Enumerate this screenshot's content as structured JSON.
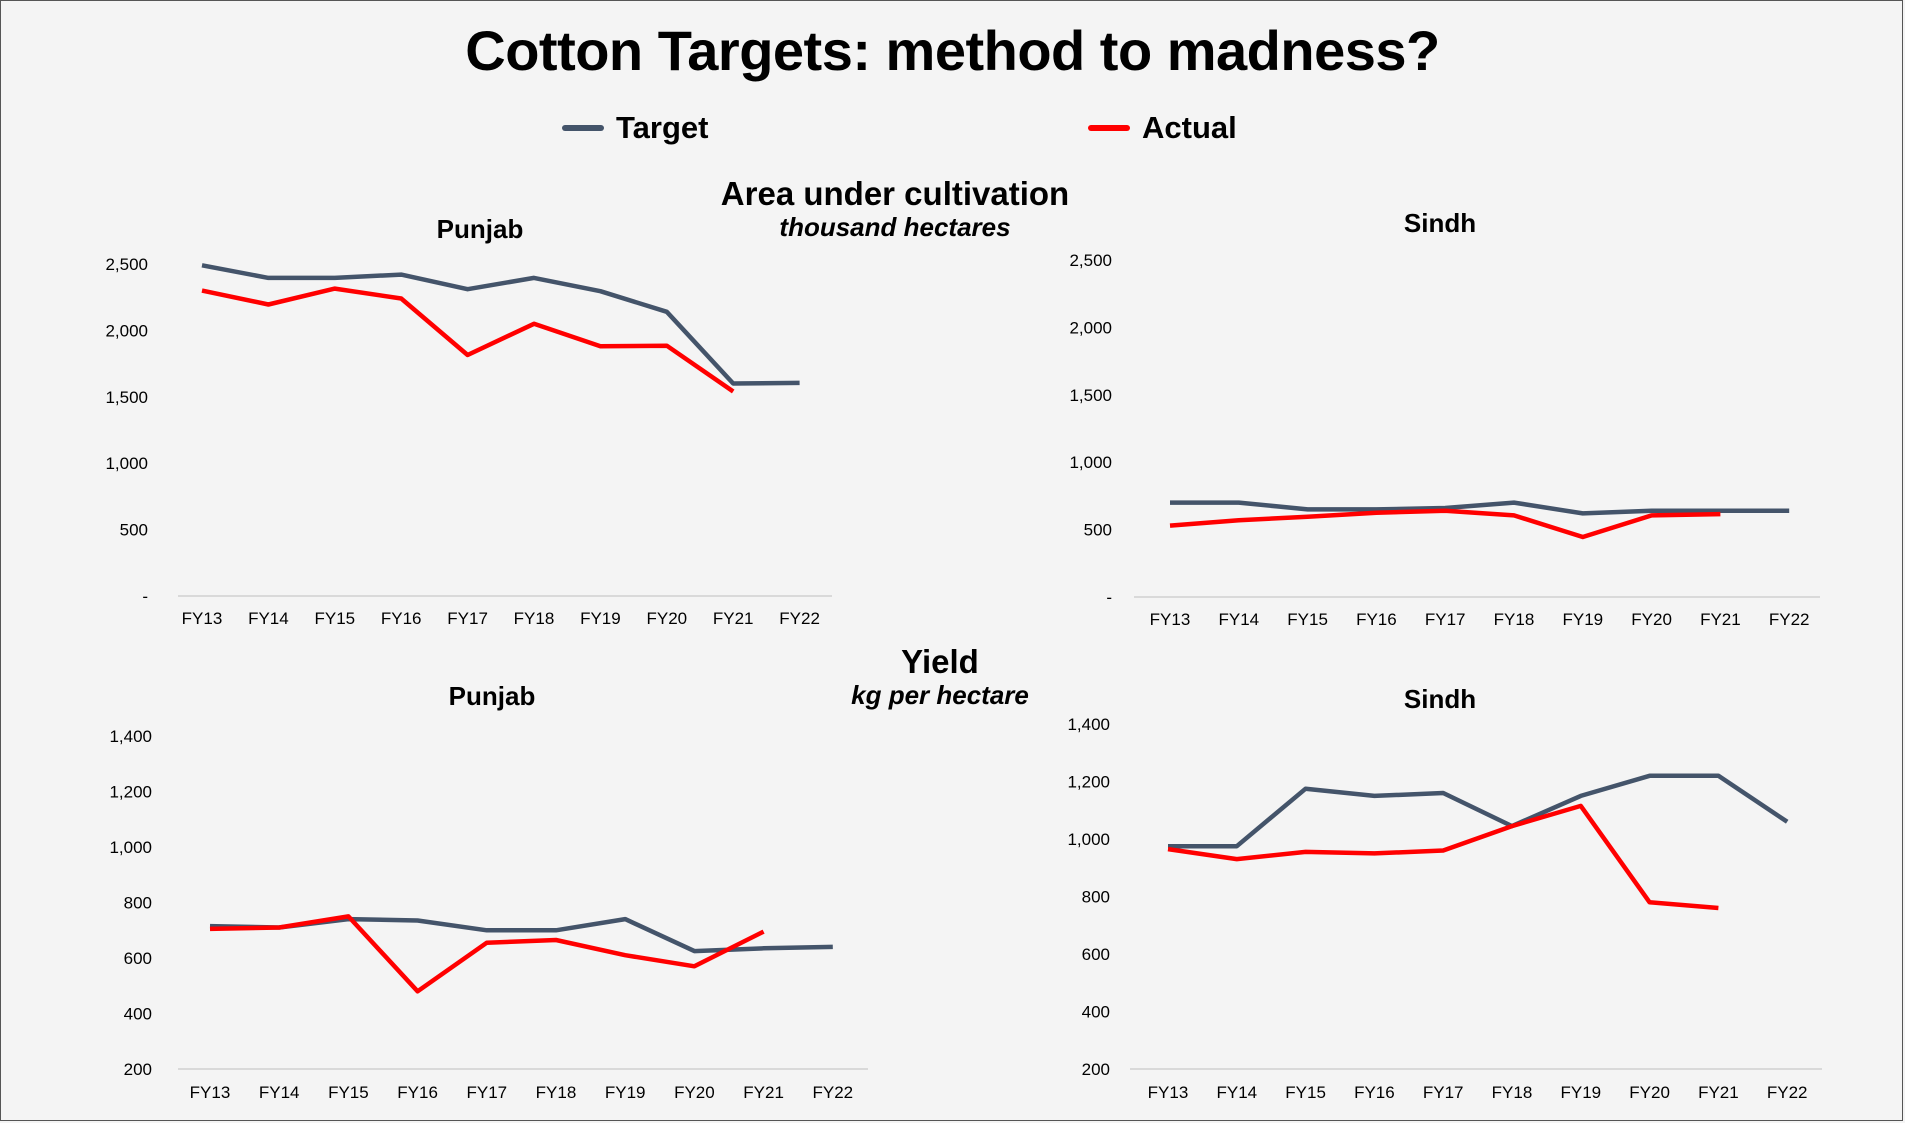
{
  "title": "Cotton Targets: method to madness?",
  "legend": {
    "target": {
      "label": "Target",
      "color": "#44546a"
    },
    "actual": {
      "label": "Actual",
      "color": "#ff0000"
    }
  },
  "sections": {
    "area": {
      "title": "Area under cultivation",
      "subtitle": "thousand hectares"
    },
    "yield": {
      "title": "Yield",
      "subtitle": "kg per hectare"
    }
  },
  "chart_data": [
    {
      "type": "line",
      "title": "Punjab",
      "categories": [
        "FY13",
        "FY14",
        "FY15",
        "FY16",
        "FY17",
        "FY18",
        "FY19",
        "FY20",
        "FY21",
        "FY22"
      ],
      "ylim": [
        0,
        2500
      ],
      "yticks": [
        0,
        500,
        1000,
        1500,
        2000,
        2500
      ],
      "ytick_labels": [
        "-",
        "500",
        "1,000",
        "1,500",
        "2,000",
        "2,500"
      ],
      "grid": false,
      "series": [
        {
          "name": "Target",
          "color": "#44546a",
          "values": [
            2490,
            2395,
            2395,
            2420,
            2310,
            2395,
            2295,
            2140,
            1600,
            1605
          ]
        },
        {
          "name": "Actual",
          "color": "#ff0000",
          "values": [
            2300,
            2195,
            2315,
            2240,
            1815,
            2050,
            1880,
            1885,
            1540,
            null
          ]
        }
      ]
    },
    {
      "type": "line",
      "title": "Sindh",
      "categories": [
        "FY13",
        "FY14",
        "FY15",
        "FY16",
        "FY17",
        "FY18",
        "FY19",
        "FY20",
        "FY21",
        "FY22"
      ],
      "ylim": [
        0,
        2500
      ],
      "yticks": [
        0,
        500,
        1000,
        1500,
        2000,
        2500
      ],
      "ytick_labels": [
        "-",
        "500",
        "1,000",
        "1,500",
        "2,000",
        "2,500"
      ],
      "grid": false,
      "series": [
        {
          "name": "Target",
          "color": "#44546a",
          "values": [
            700,
            700,
            650,
            650,
            660,
            700,
            620,
            640,
            640,
            640
          ]
        },
        {
          "name": "Actual",
          "color": "#ff0000",
          "values": [
            530,
            570,
            595,
            625,
            640,
            605,
            445,
            605,
            615,
            null
          ]
        }
      ]
    },
    {
      "type": "line",
      "title": "Punjab",
      "categories": [
        "FY13",
        "FY14",
        "FY15",
        "FY16",
        "FY17",
        "FY18",
        "FY19",
        "FY20",
        "FY21",
        "FY22"
      ],
      "ylim": [
        200,
        1400
      ],
      "yticks": [
        200,
        400,
        600,
        800,
        1000,
        1200,
        1400
      ],
      "ytick_labels": [
        "200",
        "400",
        "600",
        "800",
        "1,000",
        "1,200",
        "1,400"
      ],
      "grid": false,
      "series": [
        {
          "name": "Target",
          "color": "#44546a",
          "values": [
            715,
            710,
            740,
            735,
            700,
            700,
            740,
            625,
            635,
            640
          ]
        },
        {
          "name": "Actual",
          "color": "#ff0000",
          "values": [
            705,
            710,
            750,
            480,
            655,
            665,
            610,
            570,
            695,
            null
          ]
        }
      ]
    },
    {
      "type": "line",
      "title": "Sindh",
      "categories": [
        "FY13",
        "FY14",
        "FY15",
        "FY16",
        "FY17",
        "FY18",
        "FY19",
        "FY20",
        "FY21",
        "FY22"
      ],
      "ylim": [
        200,
        1400
      ],
      "yticks": [
        200,
        400,
        600,
        800,
        1000,
        1200,
        1400
      ],
      "ytick_labels": [
        "200",
        "400",
        "600",
        "800",
        "1,000",
        "1,200",
        "1,400"
      ],
      "grid": false,
      "series": [
        {
          "name": "Target",
          "color": "#44546a",
          "values": [
            975,
            975,
            1175,
            1150,
            1160,
            1045,
            1150,
            1220,
            1220,
            1060
          ]
        },
        {
          "name": "Actual",
          "color": "#ff0000",
          "values": [
            965,
            930,
            955,
            950,
            960,
            1045,
            1115,
            780,
            760,
            null
          ]
        }
      ]
    }
  ]
}
